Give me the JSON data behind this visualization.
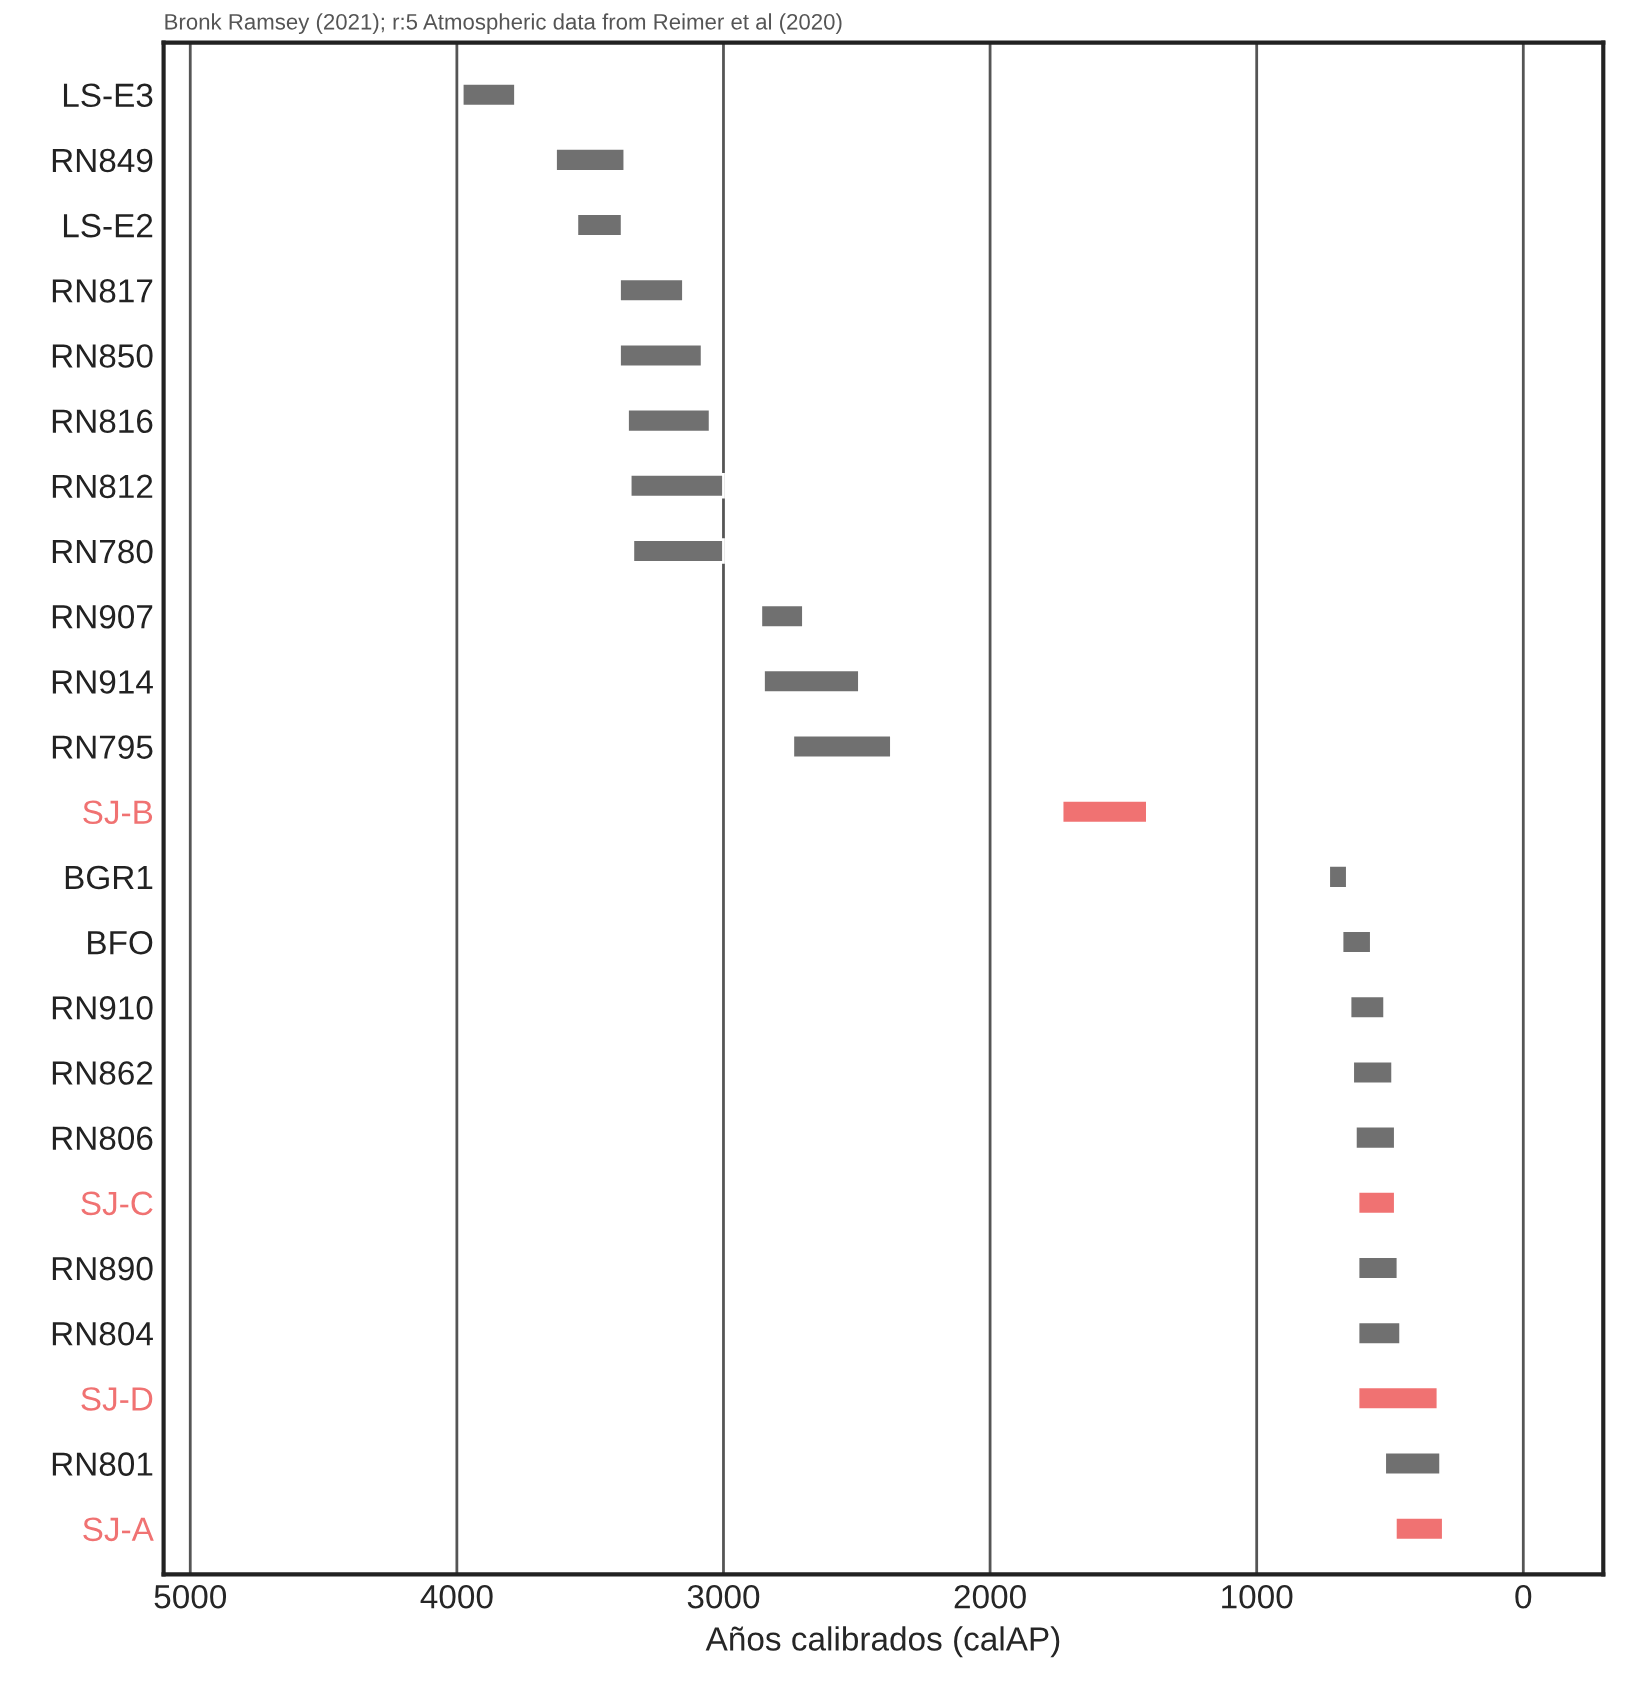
{
  "chart_data": {
    "type": "bar",
    "orientation": "horizontal",
    "xlabel": "Años calibrados (calAP)",
    "annotations": [
      "Bronk Ramsey (2021); r:5 Atmospheric data from Reimer et al (2020)"
    ],
    "categories": [
      "LS-E3",
      "RN849",
      "LS-E2",
      "RN817",
      "RN850",
      "RN816",
      "RN812",
      "RN780",
      "RN907",
      "RN914",
      "RN795",
      "SJ-B",
      "BGR1",
      "BFO",
      "RN910",
      "RN862",
      "RN806",
      "SJ-C",
      "RN890",
      "RN804",
      "SJ-D",
      "RN801",
      "SJ-A"
    ],
    "base": [
      3780,
      3370,
      3380,
      3150,
      3080,
      3050,
      3000,
      3000,
      2700,
      2490,
      2370,
      1410,
      660,
      570,
      520,
      490,
      480,
      480,
      470,
      460,
      320,
      310,
      300
    ],
    "values": [
      200,
      260,
      170,
      240,
      310,
      310,
      350,
      340,
      160,
      360,
      370,
      320,
      70,
      110,
      130,
      150,
      150,
      140,
      150,
      160,
      300,
      210,
      180
    ],
    "colors": [
      "#707070",
      "#707070",
      "#707070",
      "#707070",
      "#707070",
      "#707070",
      "#707070",
      "#707070",
      "#707070",
      "#707070",
      "#707070",
      "#f07272",
      "#707070",
      "#707070",
      "#707070",
      "#707070",
      "#707070",
      "#f07272",
      "#707070",
      "#707070",
      "#f07272",
      "#707070",
      "#f07272"
    ],
    "xlim": [
      5100,
      -300
    ],
    "xticks": [
      5000,
      4000,
      3000,
      2000,
      1000,
      0
    ],
    "grid": "x"
  }
}
